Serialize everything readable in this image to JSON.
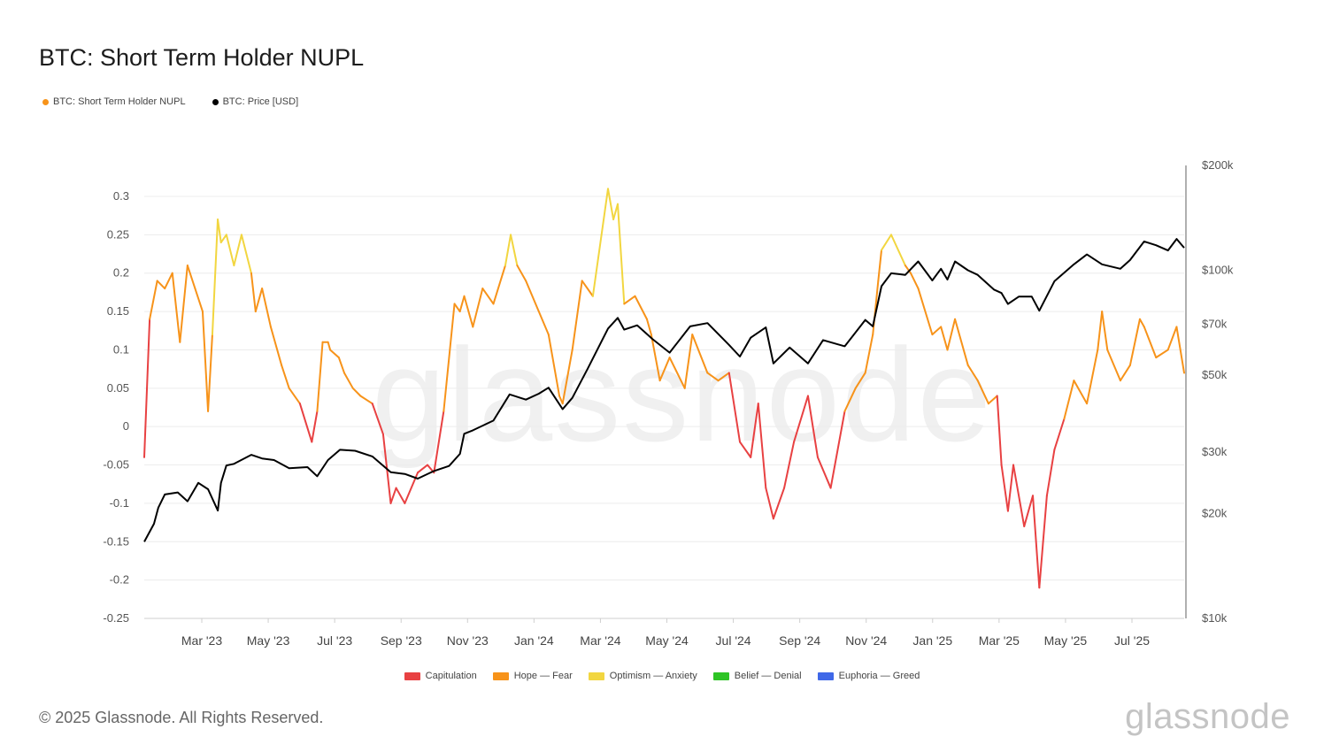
{
  "title": "BTC: Short Term Holder NUPL",
  "legend": [
    {
      "label": "BTC: Short Term Holder NUPL",
      "color": "#f7931a"
    },
    {
      "label": "BTC: Price [USD]",
      "color": "#000000"
    }
  ],
  "zones": [
    {
      "label": "Capitulation",
      "color": "#e84142"
    },
    {
      "label": "Hope — Fear",
      "color": "#f7931a"
    },
    {
      "label": "Optimism — Anxiety",
      "color": "#f2d640"
    },
    {
      "label": "Belief — Denial",
      "color": "#2ec425"
    },
    {
      "label": "Euphoria — Greed",
      "color": "#3f68e8"
    }
  ],
  "copyright": "© 2025 Glassnode. All Rights Reserved.",
  "brand": "glassnode",
  "watermark": "glassnode",
  "chart_data": {
    "type": "line",
    "x_labels": [
      "Mar '23",
      "May '23",
      "Jul '23",
      "Sep '23",
      "Nov '23",
      "Jan '24",
      "Mar '24",
      "May '24",
      "Jul '24",
      "Sep '24",
      "Nov '24",
      "Jan '25",
      "Mar '25",
      "May '25",
      "Jul '25"
    ],
    "x_start": "2023-01-01",
    "x_end": "2025-08-20",
    "ylim_left": [
      -0.25,
      0.3
    ],
    "left_ticks": [
      "0.3",
      "0.25",
      "0.2",
      "0.15",
      "0.1",
      "0.05",
      "0",
      "-0.05",
      "-0.1",
      "-0.15",
      "-0.2",
      "-0.25"
    ],
    "ylim_right": [
      10000,
      200000
    ],
    "right_scale": "log",
    "right_ticks": [
      {
        "value": 200000,
        "label": "$200k"
      },
      {
        "value": 100000,
        "label": "$100k"
      },
      {
        "value": 70000,
        "label": "$70k"
      },
      {
        "value": 50000,
        "label": "$50k"
      },
      {
        "value": 30000,
        "label": "$30k"
      },
      {
        "value": 20000,
        "label": "$20k"
      },
      {
        "value": 10000,
        "label": "$10k"
      }
    ],
    "grid": true,
    "series": [
      {
        "name": "BTC: Short Term Holder NUPL",
        "axis": "left",
        "x": [
          "2023-01-01",
          "2023-01-06",
          "2023-01-13",
          "2023-01-20",
          "2023-01-27",
          "2023-02-03",
          "2023-02-10",
          "2023-02-17",
          "2023-02-24",
          "2023-03-01",
          "2023-03-05",
          "2023-03-10",
          "2023-03-13",
          "2023-03-18",
          "2023-03-25",
          "2023-04-01",
          "2023-04-10",
          "2023-04-14",
          "2023-04-20",
          "2023-04-28",
          "2023-05-08",
          "2023-05-15",
          "2023-05-25",
          "2023-06-05",
          "2023-06-10",
          "2023-06-15",
          "2023-06-20",
          "2023-06-22",
          "2023-06-30",
          "2023-07-05",
          "2023-07-13",
          "2023-07-20",
          "2023-07-31",
          "2023-08-10",
          "2023-08-17",
          "2023-08-22",
          "2023-08-30",
          "2023-09-11",
          "2023-09-20",
          "2023-09-26",
          "2023-10-05",
          "2023-10-15",
          "2023-10-20",
          "2023-10-24",
          "2023-11-01",
          "2023-11-10",
          "2023-11-20",
          "2023-12-01",
          "2023-12-06",
          "2023-12-12",
          "2023-12-20",
          "2024-01-01",
          "2024-01-10",
          "2024-01-20",
          "2024-01-23",
          "2024-02-01",
          "2024-02-10",
          "2024-02-20",
          "2024-02-28",
          "2024-03-05",
          "2024-03-10",
          "2024-03-14",
          "2024-03-20",
          "2024-03-30",
          "2024-04-10",
          "2024-04-14",
          "2024-04-22",
          "2024-05-01",
          "2024-05-15",
          "2024-05-22",
          "2024-06-05",
          "2024-06-15",
          "2024-06-25",
          "2024-07-05",
          "2024-07-15",
          "2024-07-22",
          "2024-07-29",
          "2024-08-05",
          "2024-08-15",
          "2024-08-24",
          "2024-09-06",
          "2024-09-15",
          "2024-09-27",
          "2024-10-10",
          "2024-10-20",
          "2024-10-29",
          "2024-11-05",
          "2024-11-10",
          "2024-11-13",
          "2024-11-22",
          "2024-12-05",
          "2024-12-10",
          "2024-12-17",
          "2024-12-30",
          "2025-01-07",
          "2025-01-13",
          "2025-01-20",
          "2025-02-01",
          "2025-02-10",
          "2025-02-20",
          "2025-02-28",
          "2025-03-04",
          "2025-03-10",
          "2025-03-15",
          "2025-03-25",
          "2025-04-02",
          "2025-04-08",
          "2025-04-15",
          "2025-04-22",
          "2025-05-01",
          "2025-05-10",
          "2025-05-22",
          "2025-06-01",
          "2025-06-05",
          "2025-06-10",
          "2025-06-22",
          "2025-07-01",
          "2025-07-10",
          "2025-07-14",
          "2025-07-25",
          "2025-08-05",
          "2025-08-13",
          "2025-08-20"
        ],
        "y": [
          -0.04,
          0.14,
          0.19,
          0.18,
          0.2,
          0.11,
          0.21,
          0.18,
          0.15,
          0.02,
          0.12,
          0.27,
          0.24,
          0.25,
          0.21,
          0.25,
          0.2,
          0.15,
          0.18,
          0.13,
          0.08,
          0.05,
          0.03,
          -0.02,
          0.02,
          0.11,
          0.11,
          0.1,
          0.09,
          0.07,
          0.05,
          0.04,
          0.03,
          -0.01,
          -0.1,
          -0.08,
          -0.1,
          -0.06,
          -0.05,
          -0.06,
          0.02,
          0.16,
          0.15,
          0.17,
          0.13,
          0.18,
          0.16,
          0.21,
          0.25,
          0.21,
          0.19,
          0.15,
          0.12,
          0.04,
          0.03,
          0.1,
          0.19,
          0.17,
          0.25,
          0.31,
          0.27,
          0.29,
          0.16,
          0.17,
          0.14,
          0.12,
          0.06,
          0.09,
          0.05,
          0.12,
          0.07,
          0.06,
          0.07,
          -0.02,
          -0.04,
          0.03,
          -0.08,
          -0.12,
          -0.08,
          -0.02,
          0.04,
          -0.04,
          -0.08,
          0.02,
          0.05,
          0.07,
          0.12,
          0.19,
          0.23,
          0.25,
          0.21,
          0.2,
          0.18,
          0.12,
          0.13,
          0.1,
          0.14,
          0.08,
          0.06,
          0.03,
          0.04,
          -0.05,
          -0.11,
          -0.05,
          -0.13,
          -0.09,
          -0.21,
          -0.09,
          -0.03,
          0.01,
          0.06,
          0.03,
          0.1,
          0.15,
          0.1,
          0.06,
          0.08,
          0.14,
          0.13,
          0.09,
          0.1,
          0.13,
          0.07
        ]
      },
      {
        "name": "BTC: Price [USD]",
        "axis": "right",
        "x": [
          "2023-01-01",
          "2023-01-10",
          "2023-01-14",
          "2023-01-20",
          "2023-02-01",
          "2023-02-10",
          "2023-02-20",
          "2023-03-01",
          "2023-03-10",
          "2023-03-13",
          "2023-03-18",
          "2023-03-25",
          "2023-04-10",
          "2023-04-20",
          "2023-05-01",
          "2023-05-15",
          "2023-06-01",
          "2023-06-10",
          "2023-06-20",
          "2023-07-01",
          "2023-07-15",
          "2023-07-31",
          "2023-08-17",
          "2023-08-30",
          "2023-09-11",
          "2023-09-26",
          "2023-10-10",
          "2023-10-20",
          "2023-10-24",
          "2023-11-01",
          "2023-11-20",
          "2023-12-05",
          "2023-12-20",
          "2024-01-01",
          "2024-01-10",
          "2024-01-23",
          "2024-02-01",
          "2024-02-15",
          "2024-02-28",
          "2024-03-05",
          "2024-03-14",
          "2024-03-20",
          "2024-04-01",
          "2024-04-15",
          "2024-05-01",
          "2024-05-20",
          "2024-06-05",
          "2024-06-25",
          "2024-07-05",
          "2024-07-15",
          "2024-07-29",
          "2024-08-05",
          "2024-08-20",
          "2024-09-06",
          "2024-09-20",
          "2024-10-10",
          "2024-10-29",
          "2024-11-05",
          "2024-11-13",
          "2024-11-22",
          "2024-12-05",
          "2024-12-17",
          "2024-12-30",
          "2025-01-07",
          "2025-01-13",
          "2025-01-20",
          "2025-02-01",
          "2025-02-10",
          "2025-02-25",
          "2025-03-04",
          "2025-03-10",
          "2025-03-20",
          "2025-04-01",
          "2025-04-08",
          "2025-04-22",
          "2025-05-10",
          "2025-05-22",
          "2025-06-05",
          "2025-06-22",
          "2025-07-01",
          "2025-07-14",
          "2025-07-25",
          "2025-08-05",
          "2025-08-13",
          "2025-08-20"
        ],
        "y": [
          16600,
          18700,
          20800,
          22700,
          23000,
          21700,
          24500,
          23500,
          20400,
          24500,
          27500,
          27800,
          29500,
          28800,
          28500,
          27000,
          27200,
          25600,
          28500,
          30500,
          30300,
          29200,
          26300,
          26000,
          25200,
          26500,
          27400,
          29700,
          33900,
          34700,
          37000,
          44000,
          42500,
          44200,
          46000,
          39900,
          43000,
          52000,
          62500,
          68000,
          73000,
          67500,
          69500,
          63500,
          58000,
          69000,
          70500,
          61000,
          56500,
          64000,
          68500,
          54000,
          60000,
          54000,
          63000,
          60500,
          72000,
          69000,
          90000,
          98000,
          97000,
          106000,
          93500,
          101000,
          94000,
          106000,
          100000,
          97000,
          88000,
          86000,
          80000,
          84000,
          84000,
          76500,
          93000,
          104000,
          111000,
          104000,
          101000,
          107000,
          121000,
          118000,
          114000,
          123000,
          116000
        ]
      }
    ]
  }
}
